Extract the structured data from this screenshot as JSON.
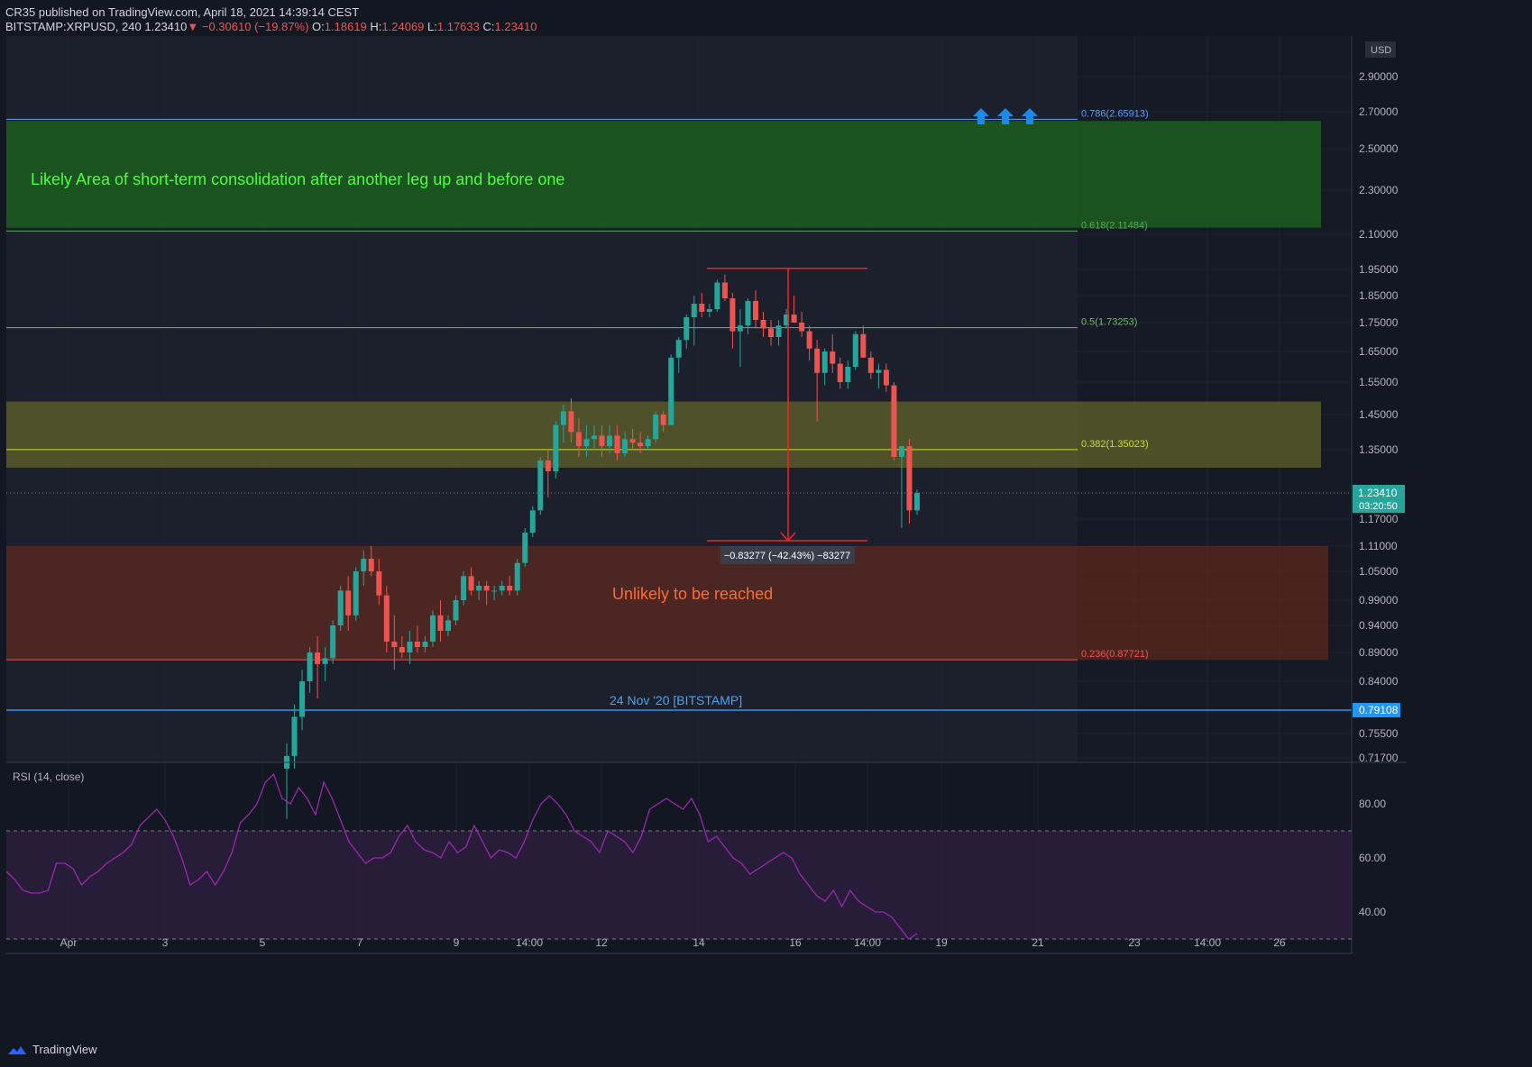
{
  "header": {
    "published": "CR35 published on TradingView.com, April 18, 2021 14:39:14 CEST",
    "symbol": "BITSTAMP:XRPUSD, 240",
    "last": "1.23410",
    "change": "−0.30610 (−19.87%)",
    "open_label": "O:",
    "open": "1.18619",
    "high_label": "H:",
    "high": "1.24069",
    "low_label": "L:",
    "low": "1.17633",
    "close_label": "C:",
    "close": "1.23410"
  },
  "footer": {
    "brand": "TradingView"
  },
  "colors": {
    "up": "#26a69a",
    "down": "#ef5350",
    "background": "#131722",
    "grid": "#1e222d",
    "rsi_line": "#9c27b0",
    "blue_line": "#2962ff"
  },
  "chart_data": [
    {
      "type": "candlestick",
      "currency": "USD",
      "y_tick_labels": [
        "2.90000",
        "2.70000",
        "2.50000",
        "2.30000",
        "2.10000",
        "1.95000",
        "1.85000",
        "1.75000",
        "1.65000",
        "1.55000",
        "1.45000",
        "1.35000",
        "1.17000",
        "1.11000",
        "1.05000",
        "0.99000",
        "0.94000",
        "0.89000",
        "0.84000",
        "0.75500",
        "0.71700"
      ],
      "x_tick_labels": [
        "Apr",
        "3",
        "5",
        "7",
        "9",
        "14:00",
        "12",
        "14",
        "16",
        "14:00",
        "19",
        "21",
        "23",
        "14:00",
        "26"
      ],
      "last_price_label": "1.23410",
      "countdown": "03:20:50",
      "horizontal_line_label": "0.79108",
      "horizontal_line_note": "24 Nov '20 [BITSTAMP]",
      "fib_levels": [
        {
          "label": "0.786(2.65913)",
          "value": 2.65913
        },
        {
          "label": "0.618(2.11484)",
          "value": 2.11484
        },
        {
          "label": "0.5(1.73253)",
          "value": 1.73253
        },
        {
          "label": "0.382(1.35023)",
          "value": 1.35023
        },
        {
          "label": "0.236(0.87721)",
          "value": 0.87721
        }
      ],
      "zones": [
        {
          "name": "green",
          "label": "Likely Area of short-term consolidation after another leg up and before one",
          "top": 2.65,
          "bottom": 2.13
        },
        {
          "name": "yellow",
          "label": "",
          "top": 1.49,
          "bottom": 1.3
        },
        {
          "name": "red",
          "label": "Unlikely to be reached",
          "top": 1.11,
          "bottom": 0.877
        }
      ],
      "measure": {
        "label": "−0.83277 (−42.43%) −83277",
        "from": 1.955,
        "to": 1.122
      },
      "candles": [
        [
          0.7,
          0.74,
          0.62,
          0.72
        ],
        [
          0.72,
          0.8,
          0.7,
          0.78
        ],
        [
          0.78,
          0.86,
          0.76,
          0.84
        ],
        [
          0.84,
          0.9,
          0.82,
          0.89
        ],
        [
          0.89,
          0.92,
          0.81,
          0.87
        ],
        [
          0.87,
          0.9,
          0.84,
          0.88
        ],
        [
          0.88,
          0.95,
          0.87,
          0.94
        ],
        [
          0.94,
          1.02,
          0.93,
          1.01
        ],
        [
          1.01,
          1.04,
          0.93,
          0.96
        ],
        [
          0.96,
          1.06,
          0.95,
          1.05
        ],
        [
          1.05,
          1.1,
          1.02,
          1.08
        ],
        [
          1.08,
          1.11,
          1.04,
          1.05
        ],
        [
          1.05,
          1.08,
          0.98,
          1.0
        ],
        [
          1.0,
          1.02,
          0.89,
          0.91
        ],
        [
          0.91,
          0.96,
          0.86,
          0.9
        ],
        [
          0.9,
          0.92,
          0.88,
          0.89
        ],
        [
          0.89,
          0.93,
          0.87,
          0.91
        ],
        [
          0.91,
          0.94,
          0.89,
          0.9
        ],
        [
          0.9,
          0.92,
          0.89,
          0.91
        ],
        [
          0.91,
          0.97,
          0.9,
          0.96
        ],
        [
          0.96,
          0.99,
          0.91,
          0.93
        ],
        [
          0.93,
          0.96,
          0.92,
          0.95
        ],
        [
          0.95,
          1.0,
          0.94,
          0.99
        ],
        [
          0.99,
          1.05,
          0.98,
          1.04
        ],
        [
          1.04,
          1.06,
          1.0,
          1.01
        ],
        [
          1.01,
          1.03,
          0.99,
          1.02
        ],
        [
          1.02,
          1.03,
          0.98,
          1.01
        ],
        [
          1.01,
          1.02,
          0.99,
          1.01
        ],
        [
          1.01,
          1.03,
          1.0,
          1.02
        ],
        [
          1.02,
          1.04,
          1.0,
          1.01
        ],
        [
          1.01,
          1.08,
          1.0,
          1.07
        ],
        [
          1.07,
          1.15,
          1.06,
          1.14
        ],
        [
          1.14,
          1.2,
          1.13,
          1.19
        ],
        [
          1.19,
          1.33,
          1.18,
          1.32
        ],
        [
          1.32,
          1.35,
          1.22,
          1.29
        ],
        [
          1.29,
          1.43,
          1.27,
          1.42
        ],
        [
          1.42,
          1.48,
          1.37,
          1.46
        ],
        [
          1.46,
          1.5,
          1.37,
          1.4
        ],
        [
          1.4,
          1.44,
          1.33,
          1.36
        ],
        [
          1.36,
          1.42,
          1.33,
          1.38
        ],
        [
          1.38,
          1.42,
          1.35,
          1.39
        ],
        [
          1.39,
          1.42,
          1.33,
          1.36
        ],
        [
          1.36,
          1.42,
          1.34,
          1.39
        ],
        [
          1.39,
          1.42,
          1.32,
          1.34
        ],
        [
          1.34,
          1.4,
          1.33,
          1.38
        ],
        [
          1.38,
          1.41,
          1.35,
          1.37
        ],
        [
          1.37,
          1.4,
          1.34,
          1.36
        ],
        [
          1.36,
          1.39,
          1.35,
          1.38
        ],
        [
          1.38,
          1.46,
          1.37,
          1.45
        ],
        [
          1.45,
          1.46,
          1.4,
          1.42
        ],
        [
          1.42,
          1.64,
          1.42,
          1.63
        ],
        [
          1.63,
          1.7,
          1.58,
          1.69
        ],
        [
          1.69,
          1.78,
          1.66,
          1.77
        ],
        [
          1.77,
          1.85,
          1.67,
          1.82
        ],
        [
          1.82,
          1.86,
          1.77,
          1.79
        ],
        [
          1.79,
          1.82,
          1.77,
          1.8
        ],
        [
          1.8,
          1.91,
          1.79,
          1.9
        ],
        [
          1.9,
          1.93,
          1.83,
          1.84
        ],
        [
          1.84,
          1.86,
          1.66,
          1.72
        ],
        [
          1.72,
          1.8,
          1.6,
          1.74
        ],
        [
          1.74,
          1.84,
          1.71,
          1.83
        ],
        [
          1.83,
          1.87,
          1.73,
          1.76
        ],
        [
          1.76,
          1.79,
          1.7,
          1.73
        ],
        [
          1.73,
          1.76,
          1.67,
          1.7
        ],
        [
          1.7,
          1.76,
          1.67,
          1.74
        ],
        [
          1.74,
          1.8,
          1.73,
          1.78
        ],
        [
          1.78,
          1.85,
          1.76,
          1.75
        ],
        [
          1.75,
          1.79,
          1.7,
          1.72
        ],
        [
          1.72,
          1.74,
          1.62,
          1.66
        ],
        [
          1.66,
          1.69,
          1.43,
          1.58
        ],
        [
          1.58,
          1.66,
          1.54,
          1.65
        ],
        [
          1.65,
          1.71,
          1.58,
          1.61
        ],
        [
          1.61,
          1.63,
          1.53,
          1.55
        ],
        [
          1.55,
          1.62,
          1.53,
          1.6
        ],
        [
          1.6,
          1.72,
          1.59,
          1.71
        ],
        [
          1.71,
          1.74,
          1.63,
          1.63
        ],
        [
          1.63,
          1.65,
          1.56,
          1.58
        ],
        [
          1.58,
          1.61,
          1.53,
          1.59
        ],
        [
          1.59,
          1.61,
          1.52,
          1.54
        ],
        [
          1.54,
          1.55,
          1.32,
          1.33
        ],
        [
          1.33,
          1.35,
          1.15,
          1.36
        ],
        [
          1.36,
          1.38,
          1.16,
          1.19
        ],
        [
          1.19,
          1.24,
          1.18,
          1.23
        ]
      ]
    },
    {
      "type": "line",
      "title": "RSI (14, close)",
      "y_tick_labels": [
        "80.00",
        "60.00",
        "40.00"
      ],
      "ylim": [
        25,
        95
      ],
      "band": [
        30,
        70
      ],
      "values": [
        55,
        52,
        48,
        47,
        47,
        48,
        58,
        58,
        56,
        50,
        53,
        55,
        58,
        60,
        62,
        65,
        72,
        75,
        78,
        74,
        68,
        60,
        50,
        52,
        55,
        50,
        55,
        62,
        73,
        76,
        80,
        88,
        91,
        82,
        80,
        86,
        82,
        76,
        88,
        82,
        74,
        66,
        62,
        58,
        60,
        60,
        62,
        68,
        72,
        66,
        63,
        62,
        60,
        66,
        62,
        64,
        72,
        66,
        60,
        63,
        62,
        60,
        66,
        74,
        80,
        83,
        80,
        76,
        70,
        68,
        66,
        62,
        70,
        68,
        66,
        62,
        68,
        78,
        80,
        82,
        80,
        78,
        82,
        76,
        66,
        68,
        64,
        60,
        58,
        54,
        56,
        58,
        60,
        62,
        60,
        54,
        50,
        46,
        44,
        48,
        42,
        48,
        44,
        42,
        40,
        40,
        38,
        34,
        30,
        32
      ]
    }
  ]
}
